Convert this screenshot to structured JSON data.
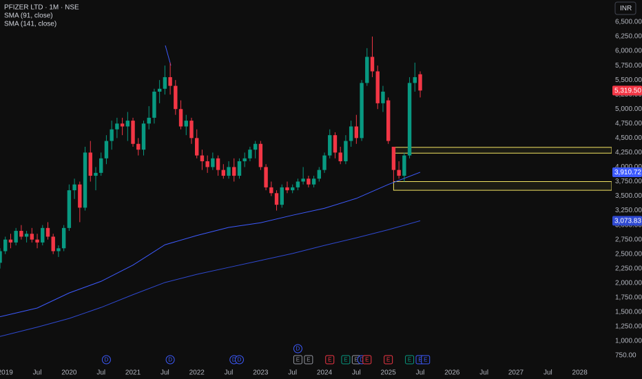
{
  "chart_data": {
    "type": "candlestick",
    "title": "PFIZER LTD · 1M · NSE",
    "currency": "INR",
    "x": [
      "2018-12",
      "2019-01",
      "2019-02",
      "2019-03",
      "2019-04",
      "2019-05",
      "2019-06",
      "2019-07",
      "2019-08",
      "2019-09",
      "2019-10",
      "2019-11",
      "2019-12",
      "2020-01",
      "2020-02",
      "2020-03",
      "2020-04",
      "2020-05",
      "2020-06",
      "2020-07",
      "2020-08",
      "2020-09",
      "2020-10",
      "2020-11",
      "2020-12",
      "2021-01",
      "2021-02",
      "2021-03",
      "2021-04",
      "2021-05",
      "2021-06",
      "2021-07",
      "2021-08",
      "2021-09",
      "2021-10",
      "2021-11",
      "2021-12",
      "2022-01",
      "2022-02",
      "2022-03",
      "2022-04",
      "2022-05",
      "2022-06",
      "2022-07",
      "2022-08",
      "2022-09",
      "2022-10",
      "2022-11",
      "2022-12",
      "2023-01",
      "2023-02",
      "2023-03",
      "2023-04",
      "2023-05",
      "2023-06",
      "2023-07",
      "2023-08",
      "2023-09",
      "2023-10",
      "2023-11",
      "2023-12",
      "2024-01",
      "2024-02",
      "2024-03",
      "2024-04",
      "2024-05",
      "2024-06",
      "2024-07",
      "2024-08",
      "2024-09",
      "2024-10",
      "2024-11",
      "2024-12",
      "2025-01",
      "2025-02",
      "2025-03",
      "2025-04",
      "2025-05",
      "2025-06",
      "2025-07"
    ],
    "open": [
      2350,
      2550,
      2750,
      2700,
      2900,
      2800,
      2850,
      2750,
      2700,
      2950,
      2800,
      2550,
      2600,
      2950,
      3600,
      3700,
      3300,
      4250,
      3850,
      3900,
      4150,
      4450,
      4650,
      4750,
      4700,
      4800,
      4400,
      4300,
      4750,
      4850,
      5300,
      5350,
      5550,
      5400,
      5000,
      4700,
      4800,
      4500,
      4200,
      4100,
      4000,
      4150,
      3950,
      3850,
      4000,
      3850,
      4100,
      4150,
      4300,
      4400,
      4000,
      3650,
      3550,
      3350,
      3650,
      3600,
      3650,
      3750,
      3800,
      3700,
      3800,
      3950,
      4200,
      4550,
      4250,
      4100,
      4450,
      4700,
      4500,
      5450,
      5900,
      5650,
      5100,
      5150,
      4350,
      3950,
      3850,
      4200,
      5450,
      5600
    ],
    "high": [
      2600,
      2800,
      2850,
      2950,
      3000,
      2900,
      2950,
      2850,
      3000,
      3050,
      2850,
      2650,
      3000,
      3700,
      3800,
      3750,
      4350,
      4450,
      4000,
      4250,
      4550,
      4800,
      4850,
      4850,
      4950,
      4850,
      4500,
      4800,
      5050,
      5350,
      5500,
      5750,
      5800,
      5500,
      5150,
      4900,
      4850,
      4650,
      4300,
      4200,
      4250,
      4200,
      4050,
      4100,
      4150,
      4150,
      4250,
      4350,
      4450,
      4450,
      4050,
      3750,
      3600,
      3700,
      3750,
      3700,
      3800,
      4000,
      3850,
      3850,
      4000,
      4250,
      4650,
      4600,
      4350,
      4550,
      4800,
      4900,
      5500,
      6050,
      6250,
      5750,
      5400,
      5200,
      4350,
      4100,
      4250,
      5550,
      5800,
      5650
    ],
    "low": [
      2250,
      2500,
      2600,
      2650,
      2750,
      2700,
      2700,
      2600,
      2650,
      2750,
      2500,
      2450,
      2550,
      2900,
      3450,
      3050,
      3250,
      3750,
      3600,
      3850,
      4050,
      4300,
      4500,
      4550,
      4450,
      4350,
      4200,
      4200,
      4650,
      4750,
      5100,
      5250,
      5250,
      4900,
      4650,
      4550,
      4400,
      4150,
      3950,
      3900,
      3950,
      3850,
      3800,
      3800,
      3750,
      3800,
      4000,
      4100,
      4150,
      3950,
      3600,
      3500,
      3250,
      3300,
      3550,
      3550,
      3600,
      3700,
      3650,
      3650,
      3750,
      3900,
      4150,
      4150,
      4050,
      4050,
      4350,
      4400,
      4450,
      5400,
      5550,
      5000,
      4950,
      4400,
      3750,
      3800,
      3750,
      4150,
      5300,
      5200
    ],
    "close": [
      2550,
      2750,
      2700,
      2900,
      2800,
      2850,
      2750,
      2700,
      2950,
      2800,
      2550,
      2600,
      2950,
      3600,
      3700,
      3300,
      4250,
      3850,
      3900,
      4150,
      4450,
      4650,
      4750,
      4700,
      4800,
      4400,
      4300,
      4750,
      4850,
      5300,
      5350,
      5550,
      5400,
      5000,
      4700,
      4800,
      4500,
      4200,
      4100,
      4000,
      4150,
      3950,
      3850,
      4000,
      3850,
      4100,
      4150,
      4300,
      4400,
      4000,
      3650,
      3550,
      3350,
      3650,
      3600,
      3650,
      3750,
      3800,
      3700,
      3800,
      3950,
      4200,
      4550,
      4250,
      4100,
      4450,
      4700,
      4500,
      5450,
      5900,
      5650,
      5100,
      5300,
      4450,
      3950,
      3850,
      4200,
      5450,
      5550,
      5319.5
    ],
    "up_color": "#089981",
    "down_color": "#f23645",
    "lines": [
      {
        "name": "SMA (91, close)",
        "color": "#3d5afe",
        "x": [
          "2018-12",
          "2019-07",
          "2020-01",
          "2020-07",
          "2021-01",
          "2021-07",
          "2022-01",
          "2022-07",
          "2023-01",
          "2023-07",
          "2024-01",
          "2024-07",
          "2025-01",
          "2025-07"
        ],
        "values": [
          1420,
          1570,
          1830,
          2030,
          2310,
          2660,
          2820,
          2960,
          3040,
          3170,
          3290,
          3460,
          3700,
          3910.72
        ]
      },
      {
        "name": "SMA (141, close)",
        "color": "#2f49d1",
        "x": [
          "2018-12",
          "2019-07",
          "2020-01",
          "2020-07",
          "2021-01",
          "2021-07",
          "2022-01",
          "2022-07",
          "2023-01",
          "2023-07",
          "2024-01",
          "2024-07",
          "2025-01",
          "2025-07"
        ],
        "values": [
          1080,
          1240,
          1390,
          1580,
          1800,
          2010,
          2150,
          2270,
          2390,
          2510,
          2650,
          2780,
          2920,
          3073.83
        ]
      }
    ],
    "xlim": [
      "2018-12",
      "2028-07"
    ],
    "xticks": [
      {
        "value": "2019-01",
        "label": "2019"
      },
      {
        "value": "2019-07",
        "label": "Jul"
      },
      {
        "value": "2020-01",
        "label": "2020"
      },
      {
        "value": "2020-07",
        "label": "Jul"
      },
      {
        "value": "2021-01",
        "label": "2021"
      },
      {
        "value": "2021-07",
        "label": "Jul"
      },
      {
        "value": "2022-01",
        "label": "2022"
      },
      {
        "value": "2022-07",
        "label": "Jul"
      },
      {
        "value": "2023-01",
        "label": "2023"
      },
      {
        "value": "2023-07",
        "label": "Jul"
      },
      {
        "value": "2024-01",
        "label": "2024"
      },
      {
        "value": "2024-07",
        "label": "Jul"
      },
      {
        "value": "2025-01",
        "label": "2025"
      },
      {
        "value": "2025-07",
        "label": "Jul"
      },
      {
        "value": "2026-01",
        "label": "2026"
      },
      {
        "value": "2026-07",
        "label": "Jul"
      },
      {
        "value": "2027-01",
        "label": "2027"
      },
      {
        "value": "2027-07",
        "label": "Jul"
      },
      {
        "value": "2028-01",
        "label": "2028"
      }
    ],
    "ylim": [
      584,
      6880
    ],
    "yticks": [
      {
        "value": 750,
        "label": "750.00"
      },
      {
        "value": 1000,
        "label": "1,000.00"
      },
      {
        "value": 1250,
        "label": "1,250.00"
      },
      {
        "value": 1500,
        "label": "1,500.00"
      },
      {
        "value": 1750,
        "label": "1,750.00"
      },
      {
        "value": 2000,
        "label": "2,000.00"
      },
      {
        "value": 2250,
        "label": "2,250.00"
      },
      {
        "value": 2500,
        "label": "2,500.00"
      },
      {
        "value": 2750,
        "label": "2,750.00"
      },
      {
        "value": 3000,
        "label": "3,000.00"
      },
      {
        "value": 3250,
        "label": "3,250.00"
      },
      {
        "value": 3500,
        "label": "3,500.00"
      },
      {
        "value": 3750,
        "label": "3,750.00"
      },
      {
        "value": 4000,
        "label": "4,000.00"
      },
      {
        "value": 4250,
        "label": "4,250.00"
      },
      {
        "value": 4500,
        "label": "4,500.00"
      },
      {
        "value": 4750,
        "label": "4,750.00"
      },
      {
        "value": 5000,
        "label": "5,000.00"
      },
      {
        "value": 5250,
        "label": "5,250.00"
      },
      {
        "value": 5500,
        "label": "5,500.00"
      },
      {
        "value": 5750,
        "label": "5,750.00"
      },
      {
        "value": 6000,
        "label": "6,000.00"
      },
      {
        "value": 6250,
        "label": "6,250.00"
      },
      {
        "value": 6500,
        "label": "6,500.00"
      }
    ],
    "grid": false,
    "price_labels": [
      {
        "value": 5319.5,
        "label": "5,319.50",
        "color": "#f23645"
      },
      {
        "value": 3910.72,
        "label": "3,910.72",
        "color": "#3d5afe"
      },
      {
        "value": 3073.83,
        "label": "3,073.83",
        "color": "#2f49d1"
      }
    ],
    "zones": [
      {
        "from": "2025-02",
        "high": 4340,
        "low": 4240,
        "color": "#f5e663"
      },
      {
        "from": "2025-02",
        "high": 3750,
        "low": 3600,
        "color": "#f5e663"
      }
    ],
    "events": [
      {
        "x": "2020-08",
        "label": "D",
        "color": "#3d5afe"
      },
      {
        "x": "2021-08",
        "label": "D",
        "color": "#3d5afe"
      },
      {
        "x": "2022-08",
        "label": "D",
        "color": "#3d5afe"
      },
      {
        "x": "2022-09",
        "label": "D",
        "color": "#3d5afe"
      },
      {
        "x": "2023-08",
        "label": "E",
        "color": "#9598a1"
      },
      {
        "x": "2023-08",
        "label": "D",
        "color": "#3d5afe"
      },
      {
        "x": "2023-10",
        "label": "E",
        "color": "#9598a1"
      },
      {
        "x": "2024-02",
        "label": "E",
        "color": "#f23645"
      },
      {
        "x": "2024-05",
        "label": "E",
        "color": "#089981"
      },
      {
        "x": "2024-07",
        "label": "E",
        "color": "#9598a1"
      },
      {
        "x": "2024-08",
        "label": "D",
        "color": "#3d5afe"
      },
      {
        "x": "2024-09",
        "label": "E",
        "color": "#f23645"
      },
      {
        "x": "2025-01",
        "label": "E",
        "color": "#f23645"
      },
      {
        "x": "2025-05",
        "label": "E",
        "color": "#089981"
      },
      {
        "x": "2025-07",
        "label": "E",
        "color": "#3d5afe"
      },
      {
        "x": "2025-08",
        "label": "E",
        "color": "#3d5afe"
      }
    ]
  }
}
